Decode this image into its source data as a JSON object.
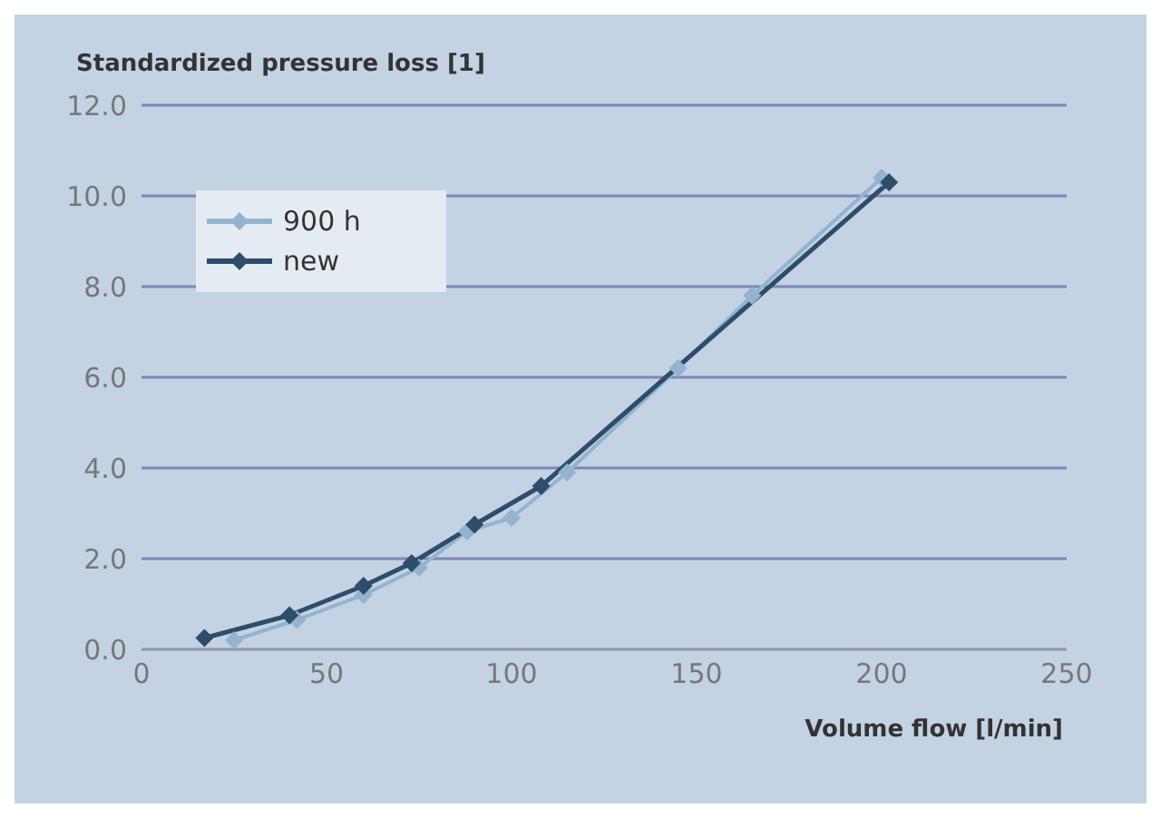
{
  "chart_data": {
    "type": "line",
    "xlabel": "Volume flow [l/min]",
    "ylabel": "Standardized pressure loss [1]",
    "xlim": [
      0,
      250
    ],
    "xticks": [
      0,
      50,
      100,
      150,
      200,
      250
    ],
    "ylim": [
      0,
      12
    ],
    "yticks": [
      {
        "value": 0,
        "label": "0.0"
      },
      {
        "value": 2,
        "label": "2.0"
      },
      {
        "value": 4,
        "label": "4.0"
      },
      {
        "value": 6,
        "label": "6.0"
      },
      {
        "value": 8,
        "label": "8.0"
      },
      {
        "value": 10,
        "label": "10.0"
      },
      {
        "value": 12,
        "label": "12.0"
      }
    ],
    "grid": "y",
    "legend": "top left",
    "marker": "diamond",
    "line_style": "solid",
    "series": [
      {
        "name": "900 h",
        "color": "#93b3cf",
        "x": [
          25,
          42,
          60,
          75,
          88,
          100,
          115,
          145,
          165,
          200
        ],
        "values": [
          0.2,
          0.65,
          1.2,
          1.8,
          2.6,
          2.9,
          3.9,
          6.2,
          7.8,
          10.4
        ]
      },
      {
        "name": "new",
        "color": "#2d4d6b",
        "x": [
          17,
          40,
          60,
          73,
          90,
          108,
          202
        ],
        "values": [
          0.25,
          0.75,
          1.4,
          1.9,
          2.75,
          3.6,
          10.3
        ]
      }
    ]
  }
}
